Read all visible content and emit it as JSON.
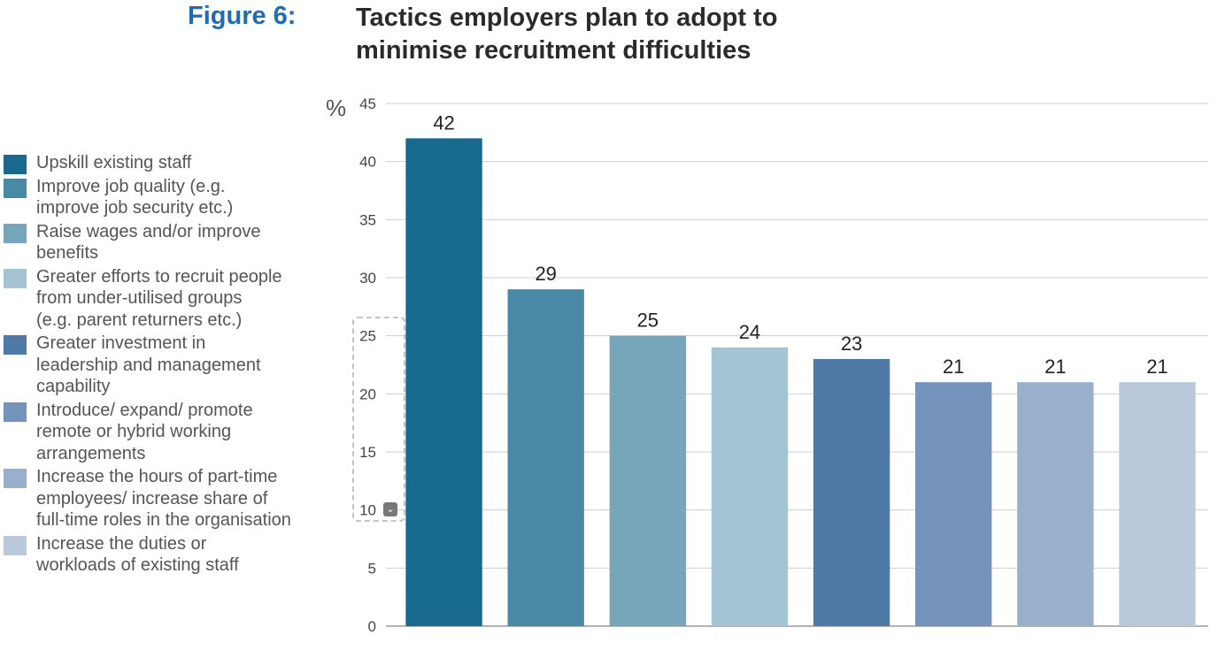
{
  "figure": {
    "label": "Figure 6:",
    "title": "Tactics employers plan to adopt to\nminimise recruitment difficulties"
  },
  "chart_data": {
    "type": "bar",
    "title": "Tactics employers plan to adopt to minimise recruitment difficulties",
    "ylabel": "%",
    "ylim": [
      0,
      45
    ],
    "yticks": [
      0,
      5,
      10,
      15,
      20,
      25,
      30,
      35,
      40,
      45
    ],
    "grid": true,
    "legend_position": "left",
    "categories": [
      "Upskill existing staff",
      "Improve job quality (e.g. improve job security etc.)",
      "Raise wages and/or improve benefits",
      "Greater efforts to recruit people from under-utilised groups (e.g. parent returners etc.)",
      "Greater investment in leadership and management capability",
      "Introduce/ expand/ promote remote or hybrid working arrangements",
      "Increase the hours of part-time employees/ increase share of full-time roles in the organisation",
      "Increase the duties or workloads of existing staff"
    ],
    "values": [
      42,
      29,
      25,
      24,
      23,
      21,
      21,
      21
    ],
    "colors": [
      "#186a8c",
      "#4a89a5",
      "#77a6bb",
      "#a5c4d3",
      "#4f7aa8",
      "#7494bb",
      "#99afcb",
      "#bac8dc"
    ]
  },
  "legend_items": [
    "Upskill existing staff",
    "Improve job quality (e.g.\n improve job security etc.)",
    "Raise wages and/or improve\n benefits",
    "Greater efforts to recruit people\n from under-utilised groups\n (e.g. parent returners etc.)",
    "Greater investment in\n leadership and management\n capability",
    "Introduce/ expand/ promote\n remote or hybrid working\n arrangements",
    "Increase the hours of part-time\n employees/ increase share of\n full-time roles in the organisation",
    "Increase the duties or\n workloads of existing staff"
  ],
  "scroll_icon": "chevron-down-icon"
}
